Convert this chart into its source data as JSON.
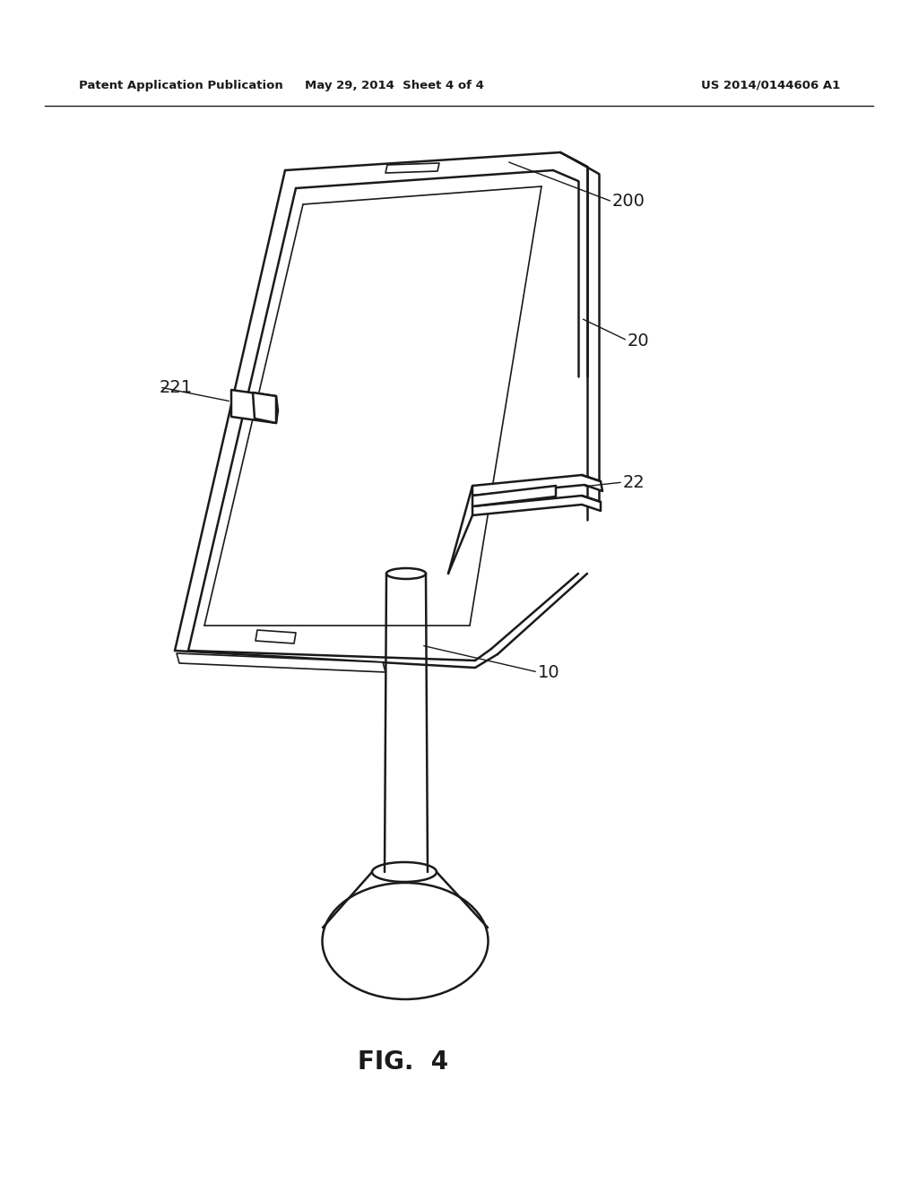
{
  "bg_color": "#ffffff",
  "line_color": "#1a1a1a",
  "line_width": 1.8,
  "thin_lw": 1.2,
  "title_left": "Patent Application Publication",
  "title_center": "May 29, 2014  Sheet 4 of 4",
  "title_right": "US 2014/0144606 A1",
  "fig_label": "FIG.  4"
}
